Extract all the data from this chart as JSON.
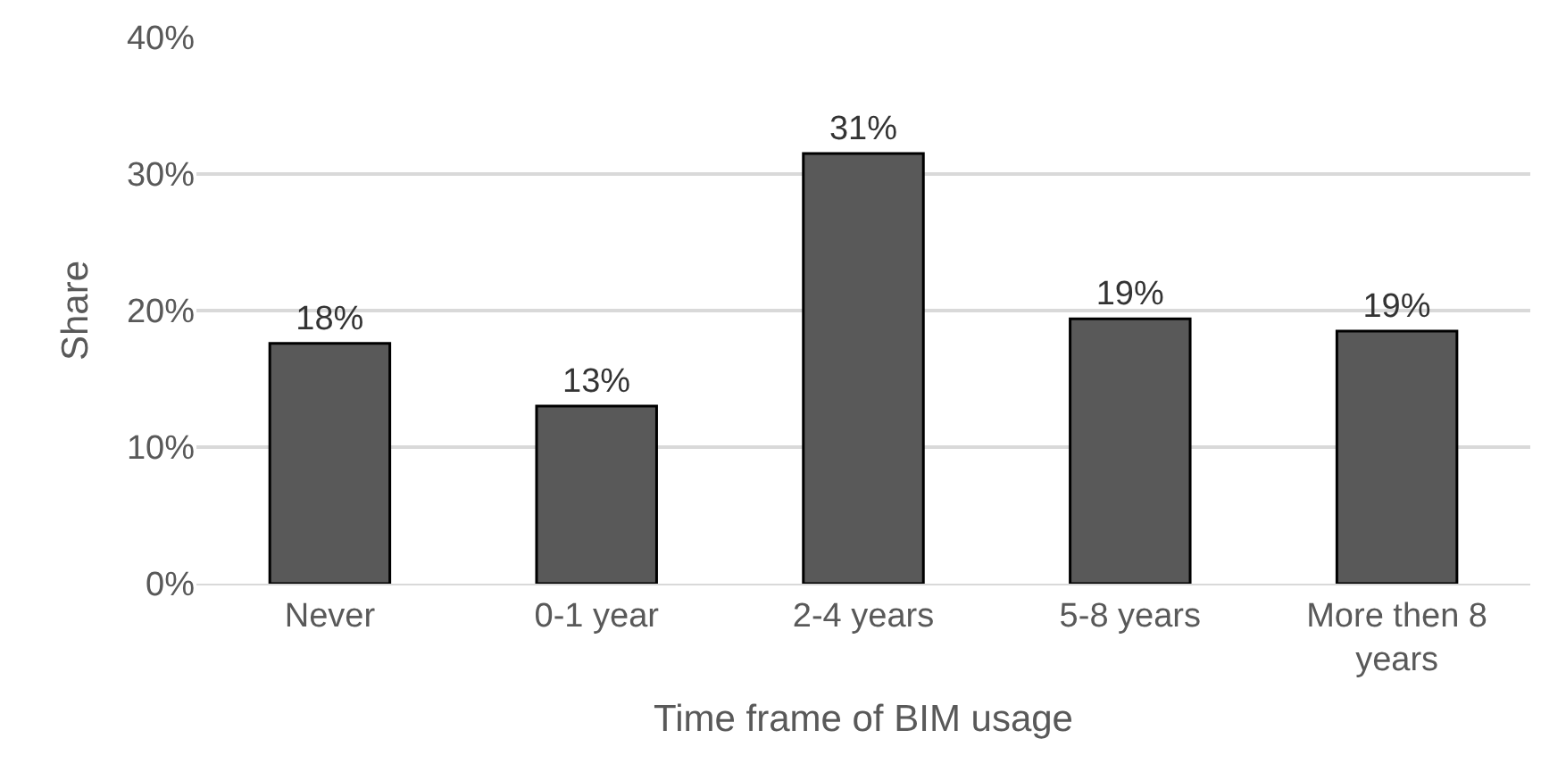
{
  "chart_data": {
    "type": "bar",
    "ylabel": "Share",
    "xlabel": "Time frame of BIM usage",
    "categories": [
      "Never",
      "0-1 year",
      "2-4 years",
      "5-8 years",
      "More then 8 years"
    ],
    "values": [
      17.6,
      13,
      31.5,
      19.4,
      18.5
    ],
    "value_labels": [
      "18%",
      "13%",
      "31%",
      "19%",
      "19%"
    ],
    "color": "#595959",
    "ylim": [
      0,
      40
    ],
    "yticks": [
      {
        "value": 0,
        "label": "0%"
      },
      {
        "value": 10,
        "label": "10%"
      },
      {
        "value": 20,
        "label": "20%"
      },
      {
        "value": 30,
        "label": "30%"
      },
      {
        "value": 40,
        "label": "40%"
      }
    ],
    "grid": "y",
    "legend": false
  }
}
